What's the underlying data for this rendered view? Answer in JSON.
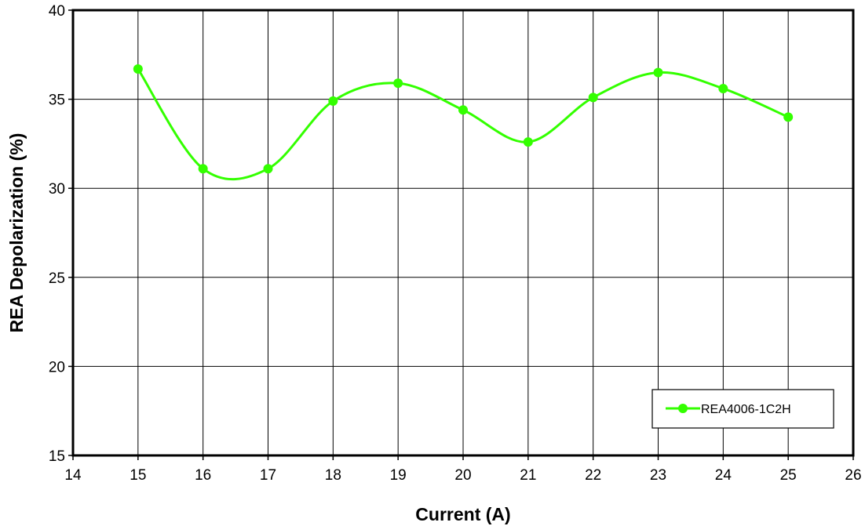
{
  "chart_data": {
    "type": "line",
    "title": "",
    "xlabel": "Current (A)",
    "ylabel": "REA Depolarization (%)",
    "xlim": [
      14,
      26
    ],
    "ylim": [
      15,
      40
    ],
    "x_ticks": [
      14,
      15,
      16,
      17,
      18,
      19,
      20,
      21,
      22,
      23,
      24,
      25,
      26
    ],
    "y_ticks": [
      15,
      20,
      25,
      30,
      35,
      40
    ],
    "grid": true,
    "smooth": true,
    "legend_position": "bottom-right",
    "series": [
      {
        "name": "REA4006-1C2H",
        "color": "#33ff00",
        "x": [
          15,
          16,
          17,
          18,
          19,
          20,
          21,
          22,
          23,
          24,
          25
        ],
        "values": [
          36.7,
          31.1,
          31.1,
          34.9,
          35.9,
          34.4,
          32.6,
          35.1,
          36.5,
          35.6,
          34.0
        ]
      }
    ]
  }
}
